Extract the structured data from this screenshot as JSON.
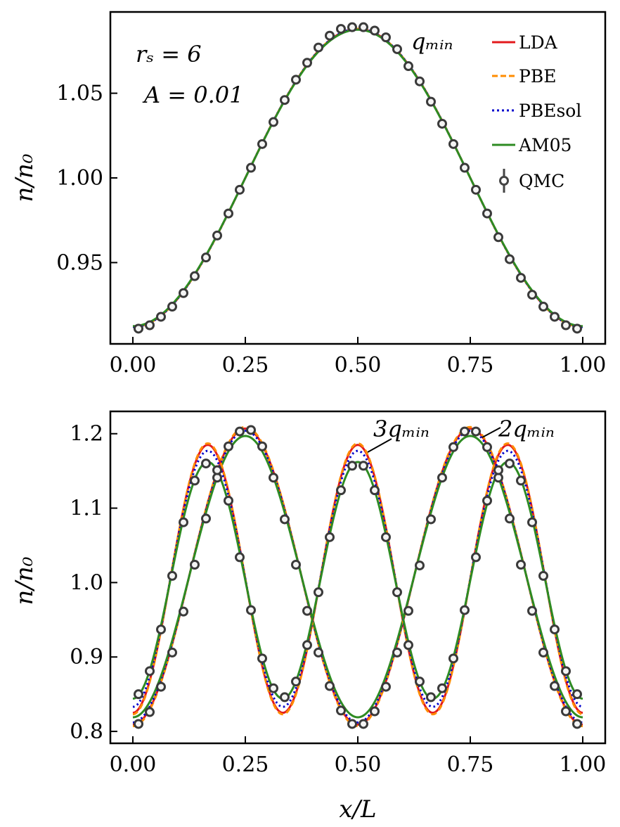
{
  "chart_data": [
    {
      "type": "line",
      "panel": "top",
      "xlabel": "",
      "ylabel": "n/n₀",
      "xlim": [
        -0.05,
        1.05
      ],
      "ylim": [
        0.902,
        1.098
      ],
      "xticks": [
        0,
        0.25,
        0.5,
        0.75,
        1.0
      ],
      "xtick_labels": [
        "0.00",
        "0.25",
        "0.50",
        "0.75",
        "1.00"
      ],
      "yticks": [
        0.95,
        1.0,
        1.05
      ],
      "ytick_labels": [
        "0.95",
        "1.00",
        "1.05"
      ],
      "annotations": [
        {
          "id": "rs",
          "text": "rₛ = 6"
        },
        {
          "id": "amp",
          "text": "A = 0.01"
        },
        {
          "id": "q",
          "text": "qₘᵢₙ"
        }
      ],
      "legend": {
        "position": "top-right",
        "entries": [
          {
            "label": "LDA",
            "color": "#e31a1c",
            "style": "solid"
          },
          {
            "label": "PBE",
            "color": "#ff8c00",
            "style": "dashed"
          },
          {
            "label": "PBEsol",
            "color": "#0000cc",
            "style": "dotted"
          },
          {
            "label": "AM05",
            "color": "#2e8b22",
            "style": "solid"
          },
          {
            "label": "QMC",
            "color": "#444444",
            "style": "marker"
          }
        ]
      },
      "series": [
        {
          "name": "LDA",
          "harmonic": 1,
          "mean": 1.0,
          "amplitude": 0.088
        },
        {
          "name": "PBE",
          "harmonic": 1,
          "mean": 1.0,
          "amplitude": 0.088
        },
        {
          "name": "PBEsol",
          "harmonic": 1,
          "mean": 1.0,
          "amplitude": 0.088
        },
        {
          "name": "AM05",
          "harmonic": 1,
          "mean": 1.0,
          "amplitude": 0.0875
        },
        {
          "name": "QMC",
          "harmonic": 1,
          "x": [
            0.0125,
            0.0375,
            0.0625,
            0.0875,
            0.1125,
            0.1375,
            0.1625,
            0.1875,
            0.2125,
            0.2375,
            0.2625,
            0.2875,
            0.3125,
            0.3375,
            0.3625,
            0.3875,
            0.4125,
            0.4375,
            0.4625,
            0.4875,
            0.5125,
            0.5375,
            0.5625,
            0.5875,
            0.6125,
            0.6375,
            0.6625,
            0.6875,
            0.7125,
            0.7375,
            0.7625,
            0.7875,
            0.8125,
            0.8375,
            0.8625,
            0.8875,
            0.9125,
            0.9375,
            0.9625,
            0.9875
          ],
          "y": [
            0.911,
            0.913,
            0.918,
            0.924,
            0.932,
            0.942,
            0.953,
            0.966,
            0.979,
            0.993,
            1.006,
            1.02,
            1.033,
            1.046,
            1.058,
            1.068,
            1.077,
            1.084,
            1.088,
            1.089,
            1.089,
            1.087,
            1.083,
            1.076,
            1.066,
            1.057,
            1.045,
            1.032,
            1.02,
            1.006,
            0.993,
            0.979,
            0.965,
            0.952,
            0.941,
            0.931,
            0.924,
            0.918,
            0.913,
            0.911
          ]
        }
      ]
    },
    {
      "type": "line",
      "panel": "bottom",
      "xlabel": "x/L",
      "ylabel": "n/n₀",
      "xlim": [
        -0.05,
        1.05
      ],
      "ylim": [
        0.784,
        1.23
      ],
      "xticks": [
        0,
        0.25,
        0.5,
        0.75,
        1.0
      ],
      "xtick_labels": [
        "0.00",
        "0.25",
        "0.50",
        "0.75",
        "1.00"
      ],
      "yticks": [
        0.8,
        0.9,
        1.0,
        1.1,
        1.2
      ],
      "ytick_labels": [
        "0.8",
        "0.9",
        "1.0",
        "1.1",
        "1.2"
      ],
      "annotations": [
        {
          "id": "q3",
          "text": "3qₘᵢₙ"
        },
        {
          "id": "q2",
          "text": "2qₘᵢₙ"
        }
      ],
      "series": [
        {
          "name": "LDA (2q_min)",
          "harmonic": 2,
          "mean": 1.008,
          "amplitude": 0.199
        },
        {
          "name": "PBE (2q_min)",
          "harmonic": 2,
          "mean": 1.008,
          "amplitude": 0.201
        },
        {
          "name": "PBEsol (2q_min)",
          "harmonic": 2,
          "mean": 1.008,
          "amplitude": 0.196
        },
        {
          "name": "AM05 (2q_min)",
          "harmonic": 2,
          "mean": 1.008,
          "amplitude": 0.189
        },
        {
          "name": "LDA (3q_min)",
          "harmonic": 3,
          "mean": 1.005,
          "amplitude": 0.18
        },
        {
          "name": "PBE (3q_min)",
          "harmonic": 3,
          "mean": 1.005,
          "amplitude": 0.182
        },
        {
          "name": "PBEsol (3q_min)",
          "harmonic": 3,
          "mean": 1.005,
          "amplitude": 0.172
        },
        {
          "name": "AM05 (3q_min)",
          "harmonic": 3,
          "mean": 1.003,
          "amplitude": 0.159
        },
        {
          "name": "QMC (2q_min)",
          "harmonic": 2,
          "x": [
            0.0125,
            0.0375,
            0.0625,
            0.0875,
            0.1125,
            0.1375,
            0.1625,
            0.1875,
            0.2125,
            0.2375,
            0.2625,
            0.2875,
            0.3125,
            0.3375,
            0.3625,
            0.3875,
            0.4125,
            0.4375,
            0.4625,
            0.4875,
            0.5125,
            0.5375,
            0.5625,
            0.5875,
            0.6125,
            0.6375,
            0.6625,
            0.6875,
            0.7125,
            0.7375,
            0.7625,
            0.7875,
            0.8125,
            0.8375,
            0.8625,
            0.8875,
            0.9125,
            0.9375,
            0.9625,
            0.9875
          ],
          "y": [
            0.81,
            0.826,
            0.86,
            0.906,
            0.961,
            1.024,
            1.086,
            1.141,
            1.183,
            1.203,
            1.205,
            1.183,
            1.141,
            1.085,
            1.024,
            0.962,
            0.906,
            0.861,
            0.828,
            0.81,
            0.81,
            0.827,
            0.86,
            0.906,
            0.962,
            1.023,
            1.085,
            1.141,
            1.182,
            1.203,
            1.203,
            1.182,
            1.141,
            1.086,
            1.024,
            0.962,
            0.906,
            0.861,
            0.827,
            0.81
          ]
        },
        {
          "name": "QMC (3q_min)",
          "harmonic": 3,
          "x": [
            0.0125,
            0.0375,
            0.0625,
            0.0875,
            0.1125,
            0.1375,
            0.1625,
            0.1875,
            0.2125,
            0.2375,
            0.2625,
            0.2875,
            0.3125,
            0.3375,
            0.3625,
            0.3875,
            0.4125,
            0.4375,
            0.4625,
            0.4875,
            0.5125,
            0.5375,
            0.5625,
            0.5875,
            0.6125,
            0.6375,
            0.6625,
            0.6875,
            0.7125,
            0.7375,
            0.7625,
            0.7875,
            0.8125,
            0.8375,
            0.8625,
            0.8875,
            0.9125,
            0.9375,
            0.9625,
            0.9875
          ],
          "y": [
            0.85,
            0.881,
            0.937,
            1.009,
            1.081,
            1.137,
            1.16,
            1.151,
            1.11,
            1.034,
            0.963,
            0.898,
            0.858,
            0.846,
            0.867,
            0.916,
            0.987,
            1.061,
            1.124,
            1.157,
            1.157,
            1.124,
            1.061,
            0.987,
            0.916,
            0.867,
            0.846,
            0.858,
            0.898,
            0.963,
            1.034,
            1.11,
            1.151,
            1.16,
            1.137,
            1.081,
            1.009,
            0.937,
            0.881,
            0.85
          ]
        }
      ]
    }
  ]
}
